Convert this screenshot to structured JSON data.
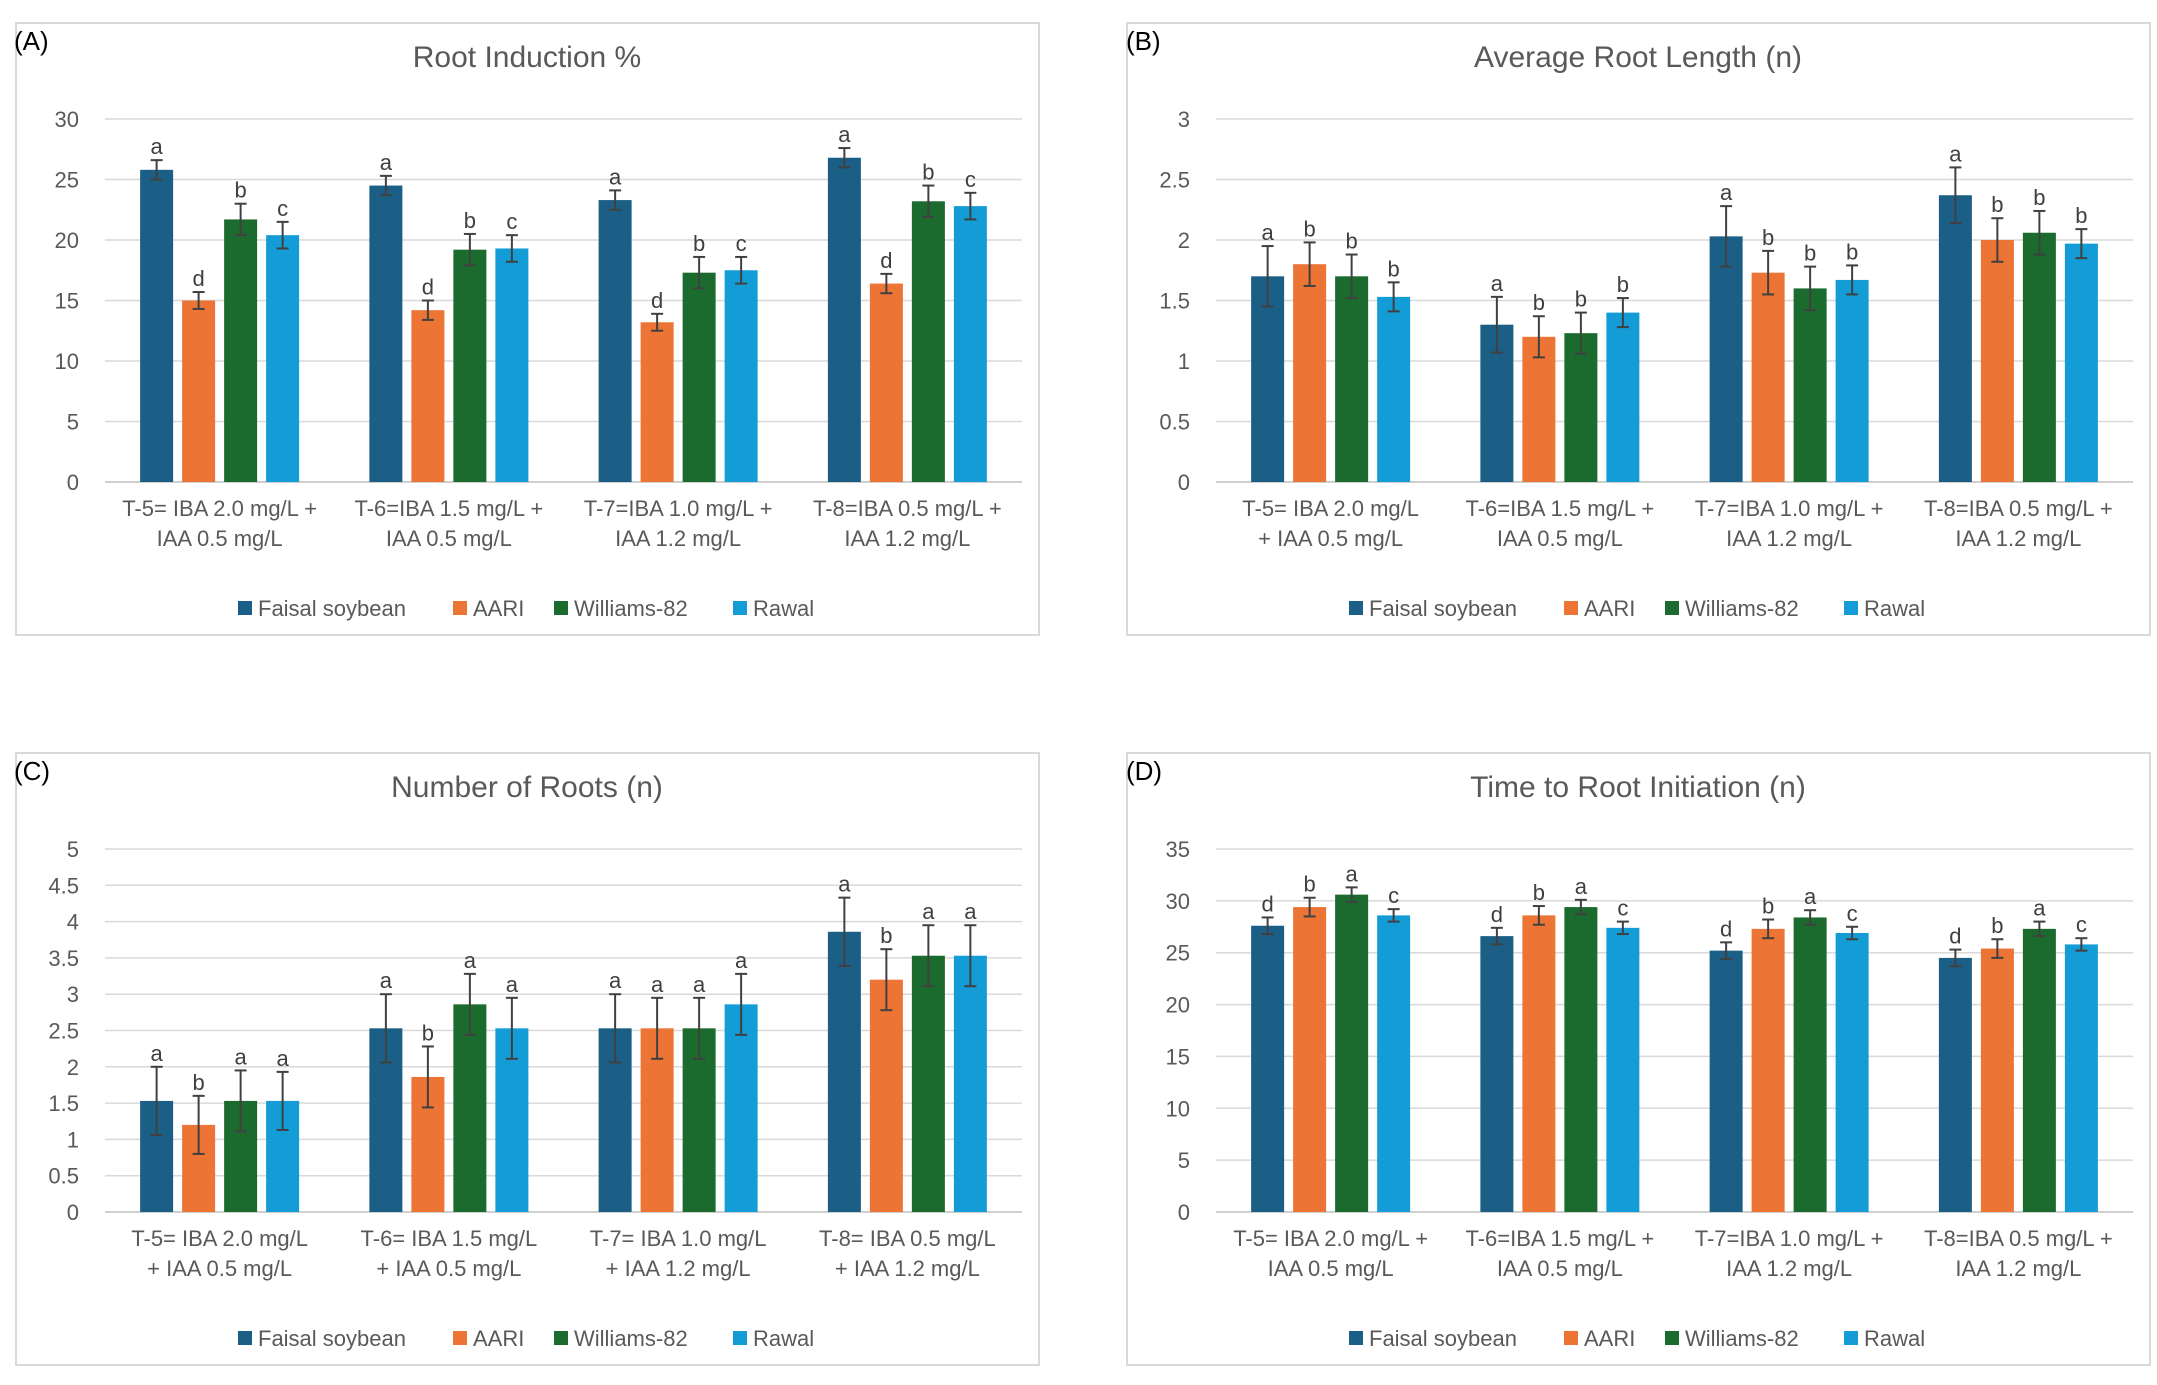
{
  "legend": {
    "items": [
      "Faisal soybean",
      "AARI",
      "Williams-82",
      "Rawal"
    ],
    "colors": [
      "#1b5f86",
      "#ec7434",
      "#1b6b2f",
      "#149cd6"
    ]
  },
  "chart_data": [
    {
      "panel": "(A)",
      "type": "bar",
      "title": "Root Induction %",
      "categories": [
        [
          "T-5= IBA 2.0 mg/L +",
          "IAA 0.5 mg/L"
        ],
        [
          "T-6=IBA 1.5 mg/L +",
          "IAA 0.5 mg/L"
        ],
        [
          "T-7=IBA 1.0 mg/L +",
          "IAA 1.2 mg/L"
        ],
        [
          "T-8=IBA 0.5 mg/L +",
          "IAA 1.2 mg/L"
        ]
      ],
      "ylim": [
        0,
        30
      ],
      "yticks": [
        0,
        5,
        10,
        15,
        20,
        25,
        30
      ],
      "series": [
        {
          "name": "Faisal soybean",
          "values": [
            25.8,
            24.5,
            23.3,
            26.8
          ],
          "errors": [
            0.8,
            0.8,
            0.8,
            0.8
          ],
          "letters": [
            "a",
            "a",
            "a",
            "a"
          ]
        },
        {
          "name": "AARI",
          "values": [
            15.0,
            14.2,
            13.2,
            16.4
          ],
          "errors": [
            0.7,
            0.8,
            0.7,
            0.8
          ],
          "letters": [
            "d",
            "d",
            "d",
            "d"
          ]
        },
        {
          "name": "Williams-82",
          "values": [
            21.7,
            19.2,
            17.3,
            23.2
          ],
          "errors": [
            1.3,
            1.3,
            1.3,
            1.3
          ],
          "letters": [
            "b",
            "b",
            "b",
            "b"
          ]
        },
        {
          "name": "Rawal",
          "values": [
            20.4,
            19.3,
            17.5,
            22.8
          ],
          "errors": [
            1.1,
            1.1,
            1.1,
            1.1
          ],
          "letters": [
            "c",
            "c",
            "c",
            "c"
          ]
        }
      ]
    },
    {
      "panel": "(B)",
      "type": "bar",
      "title": "Average Root Length (n)",
      "categories": [
        [
          "T-5= IBA 2.0 mg/L",
          "+ IAA 0.5 mg/L"
        ],
        [
          "T-6=IBA 1.5 mg/L +",
          "IAA 0.5 mg/L"
        ],
        [
          "T-7=IBA 1.0 mg/L +",
          "IAA 1.2 mg/L"
        ],
        [
          "T-8=IBA 0.5 mg/L +",
          "IAA 1.2 mg/L"
        ]
      ],
      "ylim": [
        0,
        3
      ],
      "yticks": [
        0,
        0.5,
        1,
        1.5,
        2,
        2.5,
        3
      ],
      "series": [
        {
          "name": "Faisal soybean",
          "values": [
            1.7,
            1.3,
            2.03,
            2.37
          ],
          "errors": [
            0.25,
            0.23,
            0.25,
            0.23
          ],
          "letters": [
            "a",
            "a",
            "a",
            "a"
          ]
        },
        {
          "name": "AARI",
          "values": [
            1.8,
            1.2,
            1.73,
            2.0
          ],
          "errors": [
            0.18,
            0.17,
            0.18,
            0.18
          ],
          "letters": [
            "b",
            "b",
            "b",
            "b"
          ]
        },
        {
          "name": "Williams-82",
          "values": [
            1.7,
            1.23,
            1.6,
            2.06
          ],
          "errors": [
            0.18,
            0.17,
            0.18,
            0.18
          ],
          "letters": [
            "b",
            "b",
            "b",
            "b"
          ]
        },
        {
          "name": "Rawal",
          "values": [
            1.53,
            1.4,
            1.67,
            1.97
          ],
          "errors": [
            0.12,
            0.12,
            0.12,
            0.12
          ],
          "letters": [
            "b",
            "b",
            "b",
            "b"
          ]
        }
      ]
    },
    {
      "panel": "(C)",
      "type": "bar",
      "title": "Number of Roots (n)",
      "categories": [
        [
          "T-5= IBA 2.0 mg/L",
          "+ IAA 0.5 mg/L"
        ],
        [
          "T-6= IBA 1.5 mg/L",
          "+ IAA 0.5 mg/L"
        ],
        [
          "T-7= IBA 1.0 mg/L",
          "+ IAA 1.2 mg/L"
        ],
        [
          "T-8= IBA 0.5 mg/L",
          "+ IAA 1.2 mg/L"
        ]
      ],
      "ylim": [
        0,
        5
      ],
      "yticks": [
        0,
        0.5,
        1,
        1.5,
        2,
        2.5,
        3,
        3.5,
        4,
        4.5,
        5
      ],
      "series": [
        {
          "name": "Faisal soybean",
          "values": [
            1.53,
            2.53,
            2.53,
            3.86
          ],
          "errors": [
            0.47,
            0.47,
            0.47,
            0.47
          ],
          "letters": [
            "a",
            "a",
            "a",
            "a"
          ]
        },
        {
          "name": "AARI",
          "values": [
            1.2,
            1.86,
            2.53,
            3.2
          ],
          "errors": [
            0.4,
            0.42,
            0.42,
            0.42
          ],
          "letters": [
            "b",
            "b",
            "a",
            "b"
          ]
        },
        {
          "name": "Williams-82",
          "values": [
            1.53,
            2.86,
            2.53,
            3.53
          ],
          "errors": [
            0.42,
            0.42,
            0.42,
            0.42
          ],
          "letters": [
            "a",
            "a",
            "a",
            "a"
          ]
        },
        {
          "name": "Rawal",
          "values": [
            1.53,
            2.53,
            2.86,
            3.53
          ],
          "errors": [
            0.4,
            0.42,
            0.42,
            0.42
          ],
          "letters": [
            "a",
            "a",
            "a",
            "a"
          ]
        }
      ]
    },
    {
      "panel": "(D)",
      "type": "bar",
      "title": "Time to Root Initiation (n)",
      "categories": [
        [
          "T-5= IBA 2.0 mg/L +",
          "IAA 0.5 mg/L"
        ],
        [
          "T-6=IBA 1.5 mg/L +",
          "IAA 0.5 mg/L"
        ],
        [
          "T-7=IBA 1.0 mg/L +",
          "IAA 1.2 mg/L"
        ],
        [
          "T-8=IBA 0.5 mg/L +",
          "IAA 1.2 mg/L"
        ]
      ],
      "ylim": [
        0,
        35
      ],
      "yticks": [
        0,
        5,
        10,
        15,
        20,
        25,
        30,
        35
      ],
      "series": [
        {
          "name": "Faisal soybean",
          "values": [
            27.6,
            26.6,
            25.2,
            24.5
          ],
          "errors": [
            0.8,
            0.8,
            0.8,
            0.8
          ],
          "letters": [
            "d",
            "d",
            "d",
            "d"
          ]
        },
        {
          "name": "AARI",
          "values": [
            29.4,
            28.6,
            27.3,
            25.4
          ],
          "errors": [
            0.9,
            0.9,
            0.9,
            0.9
          ],
          "letters": [
            "b",
            "b",
            "b",
            "b"
          ]
        },
        {
          "name": "Williams-82",
          "values": [
            30.6,
            29.4,
            28.4,
            27.3
          ],
          "errors": [
            0.7,
            0.7,
            0.7,
            0.7
          ],
          "letters": [
            "a",
            "a",
            "a",
            "a"
          ]
        },
        {
          "name": "Rawal",
          "values": [
            28.6,
            27.4,
            26.9,
            25.8
          ],
          "errors": [
            0.6,
            0.6,
            0.6,
            0.6
          ],
          "letters": [
            "c",
            "c",
            "c",
            "c"
          ]
        }
      ]
    }
  ]
}
